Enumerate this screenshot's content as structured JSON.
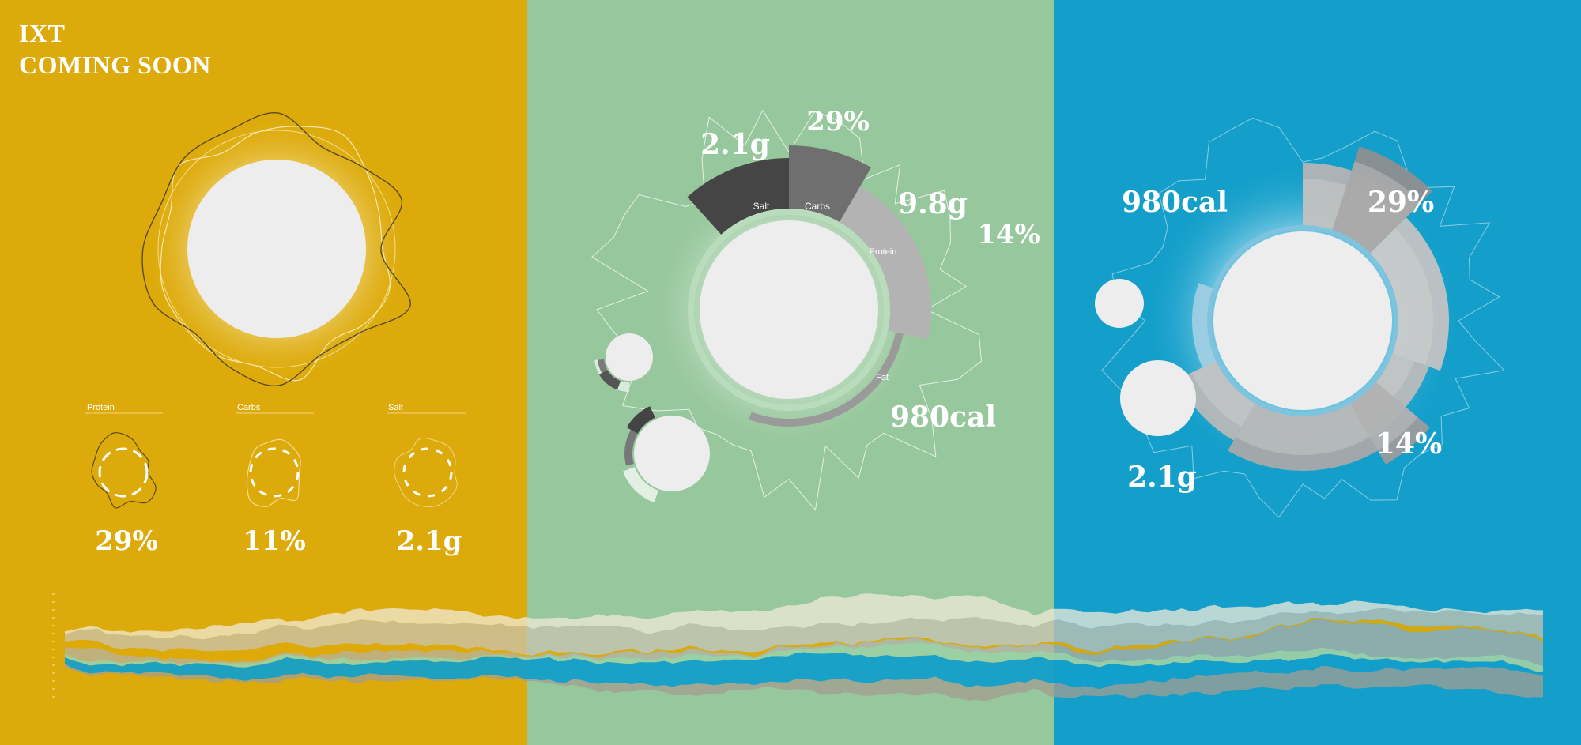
{
  "header": {
    "line1": "IXT",
    "line2": "COMING SOON"
  },
  "colors": {
    "panel_yellow": "#dcaa0a",
    "panel_green": "#97c79c",
    "panel_blue": "#139fca",
    "ring_light": "#b5b5b5",
    "ring_mid": "#8d8d8d",
    "ring_dark": "#454545",
    "disc": "#ededed"
  },
  "chart_data": [
    {
      "type": "radial-small-multiples",
      "panel": "left",
      "items": [
        {
          "label": "Protein",
          "value": "29%"
        },
        {
          "label": "Carbs",
          "value": "11%"
        },
        {
          "label": "Salt",
          "value": "2.1g"
        }
      ]
    },
    {
      "type": "radial-bar",
      "panel": "middle",
      "segments": [
        {
          "label": "Salt",
          "display": "2.1g"
        },
        {
          "label": "Carbs",
          "display": "29%"
        },
        {
          "label": "Protein",
          "display": "9.8g"
        },
        {
          "label": "Fat",
          "display": "980cal"
        }
      ],
      "extra_value": "14%"
    },
    {
      "type": "radial-bar",
      "panel": "right",
      "values": [
        "980cal",
        "29%",
        "14%",
        "2.1g"
      ]
    },
    {
      "type": "area",
      "panel": "bottom",
      "layout": "streamgraph",
      "series_colors": [
        "#f0ead8",
        "#c9c3b2",
        "#b7b1a2",
        "#a39e90",
        "#dcaa0a",
        "#9bd0a4",
        "#139fca"
      ]
    }
  ]
}
